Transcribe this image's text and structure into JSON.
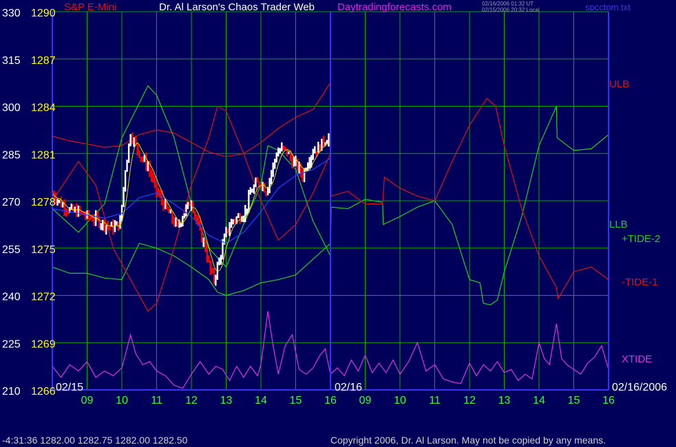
{
  "header": {
    "symbol": "S&P E-Mini",
    "site": "Dr. Al Larson's Chaos Trader Web",
    "url": "Daytradingforecasts.com",
    "stamp_ut": "02/16/2006 01:32 UT",
    "stamp_local": "02/15/2006 20:32 Local",
    "file": "spcctom.txt"
  },
  "footer": {
    "quote": "-4:31:36  1282.00 1282.75 1282.00 1282.50",
    "copyright": "Copyright 2006, Dr. Al Larson. May not be copied by any means."
  },
  "colors": {
    "background": "#00005a",
    "grid": "#00aa00",
    "axis": "#3333ff",
    "price_up": "#ffffff",
    "price_down": "#ff0000",
    "band_red": "#dd1111",
    "tide_green": "#22cc22",
    "xtide": "#dd33dd",
    "ma_blue": "#2244ff",
    "ma_yellow": "#dddd00"
  },
  "chart_data": {
    "type": "line",
    "title": "S&P E-Mini",
    "xlabel": "",
    "ylabel": "",
    "y_left_ticks": [
      "330",
      "315",
      "300",
      "285",
      "270",
      "255",
      "240",
      "225",
      "210"
    ],
    "y_price_ticks": [
      "1290",
      "1287",
      "1284",
      "1281",
      "1278",
      "1275",
      "1272",
      "1269",
      "1266"
    ],
    "ylim_price": [
      1266,
      1290
    ],
    "ylim_scale": [
      210,
      330
    ],
    "x_tick_labels": [
      "09",
      "10",
      "11",
      "12",
      "13",
      "14",
      "15",
      "16",
      "09",
      "10",
      "11",
      "12",
      "13",
      "14",
      "15",
      "16"
    ],
    "date_labels": [
      "02/15",
      "02/16",
      "02/16/2006"
    ],
    "series_labels": [
      {
        "text": "ULB",
        "color": "#dd1111"
      },
      {
        "text": "LLB",
        "color": "#22cc22"
      },
      {
        "text": "+TIDE-2",
        "color": "#22cc22"
      },
      {
        "text": "-TIDE-1",
        "color": "#dd1111"
      },
      {
        "text": "XTIDE",
        "color": "#dd33dd"
      }
    ],
    "grid": true,
    "x_range_hours": [
      8,
      24
    ],
    "price_bars": {
      "start_hour": 8.0,
      "end_hour": 16.0,
      "keypoints": [
        [
          8.0,
          1278.5
        ],
        [
          8.25,
          1277.8
        ],
        [
          8.5,
          1277.4
        ],
        [
          8.75,
          1277.3
        ],
        [
          9.0,
          1277.0
        ],
        [
          9.25,
          1276.8
        ],
        [
          9.5,
          1276.5
        ],
        [
          9.75,
          1276.3
        ],
        [
          9.95,
          1276.6
        ],
        [
          10.1,
          1280.0
        ],
        [
          10.25,
          1282.3
        ],
        [
          10.4,
          1281.5
        ],
        [
          10.55,
          1280.8
        ],
        [
          10.75,
          1280.2
        ],
        [
          10.95,
          1278.8
        ],
        [
          11.15,
          1278.0
        ],
        [
          11.4,
          1277.0
        ],
        [
          11.6,
          1276.3
        ],
        [
          11.8,
          1277.3
        ],
        [
          12.0,
          1278.0
        ],
        [
          12.2,
          1276.3
        ],
        [
          12.4,
          1275.0
        ],
        [
          12.55,
          1273.5
        ],
        [
          12.65,
          1273.0
        ],
        [
          12.8,
          1274.2
        ],
        [
          13.0,
          1276.0
        ],
        [
          13.2,
          1276.8
        ],
        [
          13.4,
          1277.0
        ],
        [
          13.55,
          1277.3
        ],
        [
          13.7,
          1278.5
        ],
        [
          13.85,
          1279.0
        ],
        [
          14.0,
          1279.2
        ],
        [
          14.15,
          1278.6
        ],
        [
          14.3,
          1279.8
        ],
        [
          14.45,
          1281.0
        ],
        [
          14.6,
          1281.3
        ],
        [
          14.75,
          1281.1
        ],
        [
          14.9,
          1280.5
        ],
        [
          15.05,
          1280.2
        ],
        [
          15.2,
          1279.6
        ],
        [
          15.35,
          1280.5
        ],
        [
          15.5,
          1281.2
        ],
        [
          15.65,
          1281.3
        ],
        [
          15.8,
          1281.8
        ],
        [
          15.95,
          1282.0
        ],
        [
          16.0,
          1282.5
        ]
      ]
    },
    "series": [
      {
        "key": "red_upper_band",
        "color": "#dd1111",
        "points": [
          [
            8.0,
            1282.1
          ],
          [
            8.5,
            1281.8
          ],
          [
            9.0,
            1281.6
          ],
          [
            9.5,
            1281.4
          ],
          [
            10.0,
            1281.5
          ],
          [
            10.5,
            1282.2
          ],
          [
            11.0,
            1282.5
          ],
          [
            11.5,
            1282.3
          ],
          [
            12.0,
            1281.7
          ],
          [
            12.5,
            1281.1
          ],
          [
            13.0,
            1280.8
          ],
          [
            13.5,
            1281.0
          ],
          [
            14.0,
            1281.7
          ],
          [
            14.5,
            1282.6
          ],
          [
            15.0,
            1283.3
          ],
          [
            15.5,
            1283.8
          ],
          [
            16.0,
            1285.5
          ]
        ]
      },
      {
        "key": "green_lower_band",
        "color": "#22cc22",
        "points": [
          [
            8.0,
            1273.8
          ],
          [
            8.5,
            1273.4
          ],
          [
            9.0,
            1273.4
          ],
          [
            9.5,
            1273.1
          ],
          [
            10.0,
            1273.0
          ],
          [
            10.5,
            1275.3
          ],
          [
            11.0,
            1275.0
          ],
          [
            11.5,
            1274.5
          ],
          [
            12.0,
            1273.8
          ],
          [
            12.5,
            1273.0
          ],
          [
            12.75,
            1272.2
          ],
          [
            13.0,
            1272.0
          ],
          [
            13.5,
            1272.3
          ],
          [
            14.0,
            1272.8
          ],
          [
            14.5,
            1273.0
          ],
          [
            15.0,
            1273.3
          ],
          [
            15.5,
            1274.3
          ],
          [
            16.0,
            1275.3
          ]
        ]
      },
      {
        "key": "green_tide",
        "color": "#22cc22",
        "points": [
          [
            8.0,
            1277.5
          ],
          [
            8.75,
            1276.0
          ],
          [
            9.5,
            1277.8
          ],
          [
            10.0,
            1282.0
          ],
          [
            10.5,
            1284.2
          ],
          [
            10.75,
            1285.3
          ],
          [
            11.0,
            1284.7
          ],
          [
            11.5,
            1282.0
          ],
          [
            12.0,
            1277.8
          ],
          [
            12.5,
            1275.0
          ],
          [
            13.0,
            1273.8
          ],
          [
            13.5,
            1276.5
          ],
          [
            14.0,
            1279.0
          ],
          [
            14.2,
            1281.5
          ],
          [
            14.5,
            1281.2
          ],
          [
            15.0,
            1280.0
          ],
          [
            15.5,
            1276.7
          ],
          [
            16.0,
            1274.5
          ],
          [
            16.02,
            1277.6
          ],
          [
            16.5,
            1277.5
          ],
          [
            17.0,
            1278.1
          ],
          [
            17.5,
            1277.9
          ],
          [
            17.52,
            1276.5
          ],
          [
            18.0,
            1277.0
          ],
          [
            18.5,
            1277.6
          ],
          [
            19.0,
            1278.0
          ],
          [
            19.5,
            1276.5
          ],
          [
            20.0,
            1273.0
          ],
          [
            20.3,
            1272.8
          ],
          [
            20.4,
            1271.5
          ],
          [
            20.6,
            1271.4
          ],
          [
            20.8,
            1271.7
          ],
          [
            21.0,
            1273.5
          ],
          [
            21.5,
            1277.0
          ],
          [
            22.0,
            1281.5
          ],
          [
            22.5,
            1284.0
          ],
          [
            22.52,
            1282.0
          ],
          [
            23.0,
            1281.2
          ],
          [
            23.5,
            1281.3
          ],
          [
            24.0,
            1282.2
          ]
        ]
      },
      {
        "key": "red_tide",
        "color": "#dd1111",
        "points": [
          [
            8.0,
            1278.0
          ],
          [
            8.75,
            1280.5
          ],
          [
            9.25,
            1279.0
          ],
          [
            9.75,
            1275.0
          ],
          [
            10.25,
            1273.0
          ],
          [
            10.75,
            1271.0
          ],
          [
            11.0,
            1271.5
          ],
          [
            11.5,
            1275.0
          ],
          [
            12.0,
            1279.0
          ],
          [
            12.5,
            1282.0
          ],
          [
            12.75,
            1284.0
          ],
          [
            13.0,
            1283.7
          ],
          [
            13.5,
            1281.0
          ],
          [
            14.0,
            1278.0
          ],
          [
            14.5,
            1275.5
          ],
          [
            15.0,
            1276.5
          ],
          [
            15.5,
            1278.5
          ],
          [
            16.0,
            1281.0
          ],
          [
            16.02,
            1278.3
          ],
          [
            16.5,
            1278.6
          ],
          [
            17.0,
            1277.8
          ],
          [
            17.5,
            1277.8
          ],
          [
            17.55,
            1279.5
          ],
          [
            18.0,
            1278.8
          ],
          [
            18.5,
            1278.3
          ],
          [
            19.0,
            1278.0
          ],
          [
            19.5,
            1280.5
          ],
          [
            20.0,
            1282.8
          ],
          [
            20.5,
            1284.5
          ],
          [
            20.75,
            1284.0
          ],
          [
            21.0,
            1281.5
          ],
          [
            21.5,
            1277.5
          ],
          [
            22.0,
            1274.5
          ],
          [
            22.5,
            1272.5
          ],
          [
            22.55,
            1271.8
          ],
          [
            23.0,
            1273.5
          ],
          [
            23.5,
            1273.8
          ],
          [
            24.0,
            1273.0
          ]
        ]
      },
      {
        "key": "xtide",
        "color": "#dd33dd",
        "points": [
          [
            8.0,
            1267.5
          ],
          [
            8.25,
            1266.8
          ],
          [
            8.5,
            1267.6
          ],
          [
            8.75,
            1267.2
          ],
          [
            9.0,
            1267.8
          ],
          [
            9.25,
            1266.8
          ],
          [
            9.5,
            1267.2
          ],
          [
            9.75,
            1266.9
          ],
          [
            10.0,
            1267.4
          ],
          [
            10.25,
            1269.5
          ],
          [
            10.4,
            1268.3
          ],
          [
            10.6,
            1267.6
          ],
          [
            10.8,
            1267.8
          ],
          [
            11.0,
            1267.2
          ],
          [
            11.25,
            1266.9
          ],
          [
            11.5,
            1266.3
          ],
          [
            11.75,
            1266.1
          ],
          [
            12.0,
            1267.0
          ],
          [
            12.25,
            1267.8
          ],
          [
            12.5,
            1267.0
          ],
          [
            12.7,
            1267.5
          ],
          [
            12.9,
            1267.3
          ],
          [
            13.1,
            1266.6
          ],
          [
            13.3,
            1267.5
          ],
          [
            13.5,
            1266.8
          ],
          [
            13.7,
            1267.5
          ],
          [
            13.9,
            1266.9
          ],
          [
            14.0,
            1267.6
          ],
          [
            14.2,
            1271.0
          ],
          [
            14.35,
            1268.8
          ],
          [
            14.5,
            1267.0
          ],
          [
            14.7,
            1268.8
          ],
          [
            14.9,
            1269.5
          ],
          [
            15.1,
            1267.3
          ],
          [
            15.3,
            1267.0
          ],
          [
            15.5,
            1267.4
          ],
          [
            15.7,
            1268.2
          ],
          [
            15.85,
            1268.6
          ],
          [
            16.0,
            1267.0
          ],
          [
            16.2,
            1267.4
          ],
          [
            16.4,
            1266.9
          ],
          [
            16.6,
            1267.9
          ],
          [
            16.8,
            1267.2
          ],
          [
            17.0,
            1268.2
          ],
          [
            17.2,
            1267.1
          ],
          [
            17.4,
            1267.7
          ],
          [
            17.6,
            1267.1
          ],
          [
            17.8,
            1267.9
          ],
          [
            18.0,
            1267.0
          ],
          [
            18.25,
            1267.8
          ],
          [
            18.5,
            1269.0
          ],
          [
            18.75,
            1267.2
          ],
          [
            19.0,
            1267.6
          ],
          [
            19.25,
            1266.7
          ],
          [
            19.5,
            1266.5
          ],
          [
            19.75,
            1266.4
          ],
          [
            20.0,
            1267.7
          ],
          [
            20.2,
            1266.9
          ],
          [
            20.4,
            1267.6
          ],
          [
            20.6,
            1267.2
          ],
          [
            20.8,
            1267.8
          ],
          [
            21.0,
            1267.1
          ],
          [
            21.2,
            1267.3
          ],
          [
            21.4,
            1266.6
          ],
          [
            21.6,
            1267.0
          ],
          [
            21.8,
            1266.7
          ],
          [
            22.0,
            1269.0
          ],
          [
            22.15,
            1268.0
          ],
          [
            22.3,
            1267.6
          ],
          [
            22.5,
            1270.2
          ],
          [
            22.65,
            1268.0
          ],
          [
            22.8,
            1267.6
          ],
          [
            23.0,
            1267.3
          ],
          [
            23.2,
            1267.0
          ],
          [
            23.4,
            1267.7
          ],
          [
            23.6,
            1268.1
          ],
          [
            23.8,
            1268.8
          ],
          [
            24.0,
            1267.3
          ]
        ]
      },
      {
        "key": "blue_average",
        "color": "#2244ff",
        "points": [
          [
            8.0,
            1277.5
          ],
          [
            8.5,
            1277.3
          ],
          [
            9.0,
            1277.1
          ],
          [
            9.5,
            1276.9
          ],
          [
            10.0,
            1277.2
          ],
          [
            10.5,
            1278.2
          ],
          [
            11.0,
            1278.5
          ],
          [
            11.5,
            1277.8
          ],
          [
            12.0,
            1277.0
          ],
          [
            12.5,
            1275.8
          ],
          [
            13.0,
            1275.3
          ],
          [
            13.5,
            1276.0
          ],
          [
            14.0,
            1277.3
          ],
          [
            14.5,
            1278.8
          ],
          [
            15.0,
            1279.6
          ],
          [
            15.5,
            1280.0
          ],
          [
            16.0,
            1280.7
          ]
        ]
      }
    ]
  }
}
